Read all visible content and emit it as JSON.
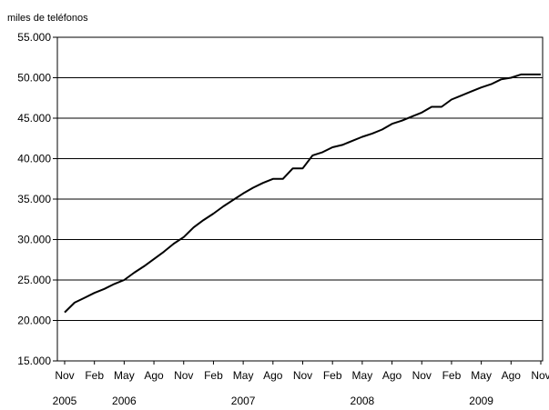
{
  "chart_data": {
    "type": "line",
    "unit_label": "miles de teléfonos",
    "ylim": [
      15000,
      55000
    ],
    "y_ticks": [
      15000,
      20000,
      25000,
      30000,
      35000,
      40000,
      45000,
      50000,
      55000
    ],
    "y_tick_labels": [
      "15.000",
      "20.000",
      "25.000",
      "30.000",
      "35.000",
      "40.000",
      "45.000",
      "50.000",
      "55.000"
    ],
    "x_tick_labels": [
      "Nov",
      "Feb",
      "May",
      "Ago",
      "Nov",
      "Feb",
      "May",
      "Ago",
      "Nov",
      "Feb",
      "May",
      "Ago",
      "Nov",
      "Feb",
      "May",
      "Ago",
      "Nov"
    ],
    "year_labels": [
      {
        "label": "2005",
        "month_index": 0
      },
      {
        "label": "2006",
        "month_index": 6
      },
      {
        "label": "2007",
        "month_index": 18
      },
      {
        "label": "2008",
        "month_index": 30
      },
      {
        "label": "2009",
        "month_index": 42
      }
    ],
    "grid": "horizontal",
    "series": [
      {
        "color": "#000000",
        "values": [
          21000,
          22200,
          22800,
          23400,
          23900,
          24500,
          25000,
          25900,
          26700,
          27600,
          28500,
          29500,
          30300,
          31500,
          32400,
          33200,
          34100,
          34900,
          35700,
          36400,
          37000,
          37500,
          37500,
          38800,
          38800,
          40400,
          40800,
          41400,
          41700,
          42200,
          42700,
          43100,
          43600,
          44300,
          44700,
          45200,
          45700,
          46400,
          46400,
          47300,
          47800,
          48300,
          48800,
          49200,
          49800,
          50000,
          50400,
          50400,
          50400
        ]
      }
    ]
  }
}
